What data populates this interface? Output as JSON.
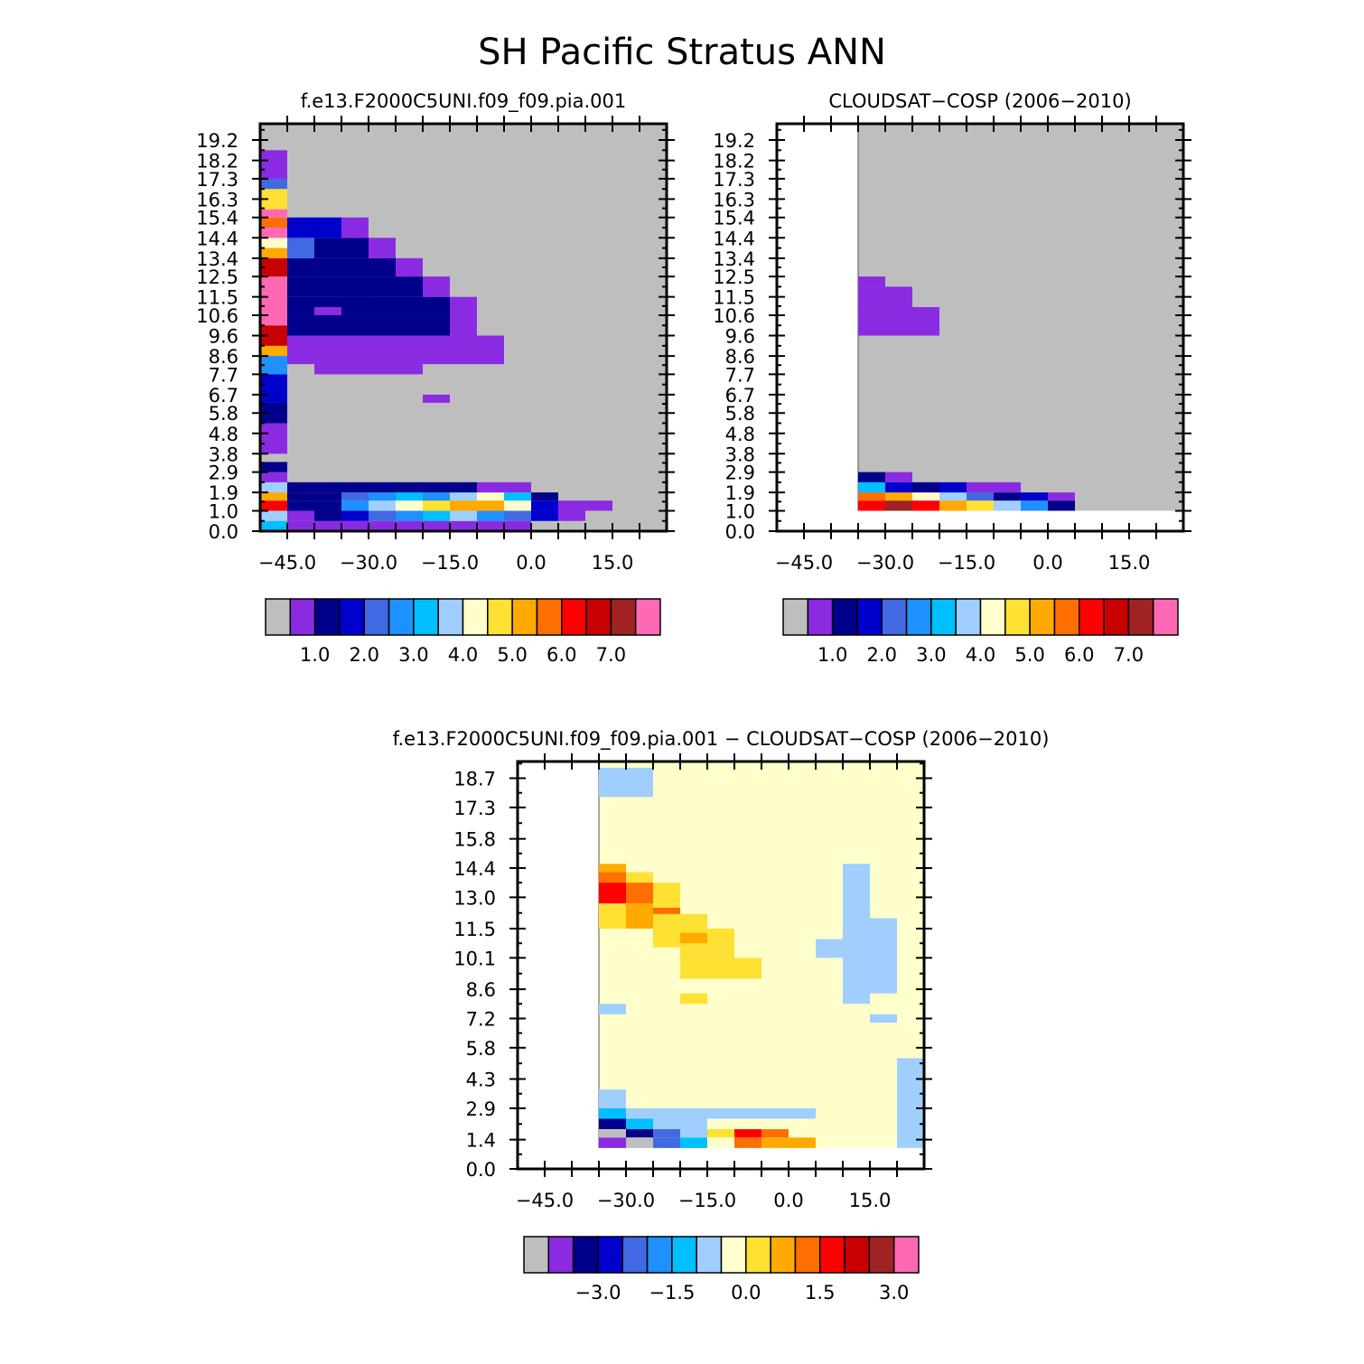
{
  "figure_title": "SH Pacific Stratus ANN",
  "colors": {
    "palette": [
      "#bebebe",
      "#8a2be2",
      "#00008b",
      "#0000cd",
      "#4169e1",
      "#1e90ff",
      "#00bfff",
      "#a0cfff",
      "#ffffcc",
      "#ffe133",
      "#ffaa00",
      "#ff6e00",
      "#ff0000",
      "#c80000",
      "#a02323",
      "#ff69b4"
    ],
    "missing": "#ffffff"
  },
  "chart_data": [
    {
      "type": "heatmap",
      "title": "f.e13.F2000C5UNI.f09_f09.pia.001",
      "xlabel": "",
      "ylabel": "",
      "xlim": [
        -50,
        25
      ],
      "ylim": [
        0.0,
        20.0
      ],
      "x_ticks": [
        -45,
        -30,
        -15,
        0,
        15
      ],
      "x_tick_labels": [
        "−45.0",
        "−30.0",
        "−15.0",
        "0.0",
        "15.0"
      ],
      "y_ticks": [
        0.0,
        1.0,
        1.9,
        2.9,
        3.8,
        4.8,
        5.8,
        6.7,
        7.7,
        8.6,
        9.6,
        10.6,
        11.5,
        12.5,
        13.4,
        14.4,
        15.4,
        16.3,
        17.3,
        18.2,
        19.2
      ],
      "y_tick_labels": [
        "0.0",
        "1.0",
        "1.9",
        "2.9",
        "3.8",
        "4.8",
        "5.8",
        "6.7",
        "7.7",
        "8.6",
        "9.6",
        "10.6",
        "11.5",
        "12.5",
        "13.4",
        "14.4",
        "15.4",
        "16.3",
        "17.3",
        "18.2",
        "19.2"
      ],
      "background_color_index": 0,
      "cells_format": "[x0, x1, y0, y1, color_index]",
      "cells": [
        [
          -50,
          -45,
          0.0,
          0.5,
          6
        ],
        [
          -50,
          -45,
          0.5,
          1.0,
          7
        ],
        [
          -50,
          -45,
          1.0,
          1.5,
          12
        ],
        [
          -50,
          -45,
          1.5,
          1.9,
          10
        ],
        [
          -50,
          -45,
          1.9,
          2.4,
          7
        ],
        [
          -50,
          -45,
          2.4,
          2.9,
          1
        ],
        [
          -50,
          -45,
          2.9,
          3.4,
          2
        ],
        [
          -50,
          -45,
          3.4,
          3.8,
          0
        ],
        [
          -50,
          -45,
          3.8,
          5.3,
          1
        ],
        [
          -50,
          -45,
          5.3,
          6.3,
          2
        ],
        [
          -50,
          -45,
          6.3,
          7.7,
          3
        ],
        [
          -50,
          -45,
          7.7,
          8.6,
          5
        ],
        [
          -50,
          -45,
          8.6,
          9.1,
          10
        ],
        [
          -50,
          -45,
          9.1,
          10.1,
          13
        ],
        [
          -50,
          -45,
          10.1,
          12.5,
          15
        ],
        [
          -50,
          -45,
          12.5,
          13.4,
          13
        ],
        [
          -50,
          -45,
          13.4,
          13.9,
          10
        ],
        [
          -50,
          -45,
          13.9,
          14.4,
          8
        ],
        [
          -50,
          -45,
          14.4,
          14.9,
          15
        ],
        [
          -50,
          -45,
          14.9,
          15.4,
          11
        ],
        [
          -50,
          -45,
          15.4,
          15.8,
          15
        ],
        [
          -50,
          -45,
          15.8,
          16.8,
          9
        ],
        [
          -50,
          -45,
          16.8,
          17.3,
          4
        ],
        [
          -50,
          -45,
          17.3,
          18.7,
          1
        ],
        [
          -45,
          0,
          0.0,
          0.5,
          1
        ],
        [
          -45,
          -40,
          0.5,
          1.0,
          1
        ],
        [
          -40,
          -35,
          0.5,
          1.0,
          2
        ],
        [
          -35,
          -30,
          0.5,
          1.0,
          3
        ],
        [
          -30,
          -25,
          0.5,
          1.0,
          4
        ],
        [
          -25,
          -20,
          0.5,
          1.0,
          5
        ],
        [
          -20,
          -15,
          0.5,
          1.0,
          6
        ],
        [
          -15,
          -10,
          0.5,
          1.0,
          7
        ],
        [
          -10,
          -5,
          0.5,
          1.0,
          5
        ],
        [
          -5,
          0,
          0.5,
          1.0,
          4
        ],
        [
          0,
          5,
          0.5,
          1.0,
          3
        ],
        [
          5,
          10,
          0.5,
          1.0,
          1
        ],
        [
          -45,
          -35,
          1.0,
          1.5,
          2
        ],
        [
          -35,
          -30,
          1.0,
          1.5,
          5
        ],
        [
          -30,
          -25,
          1.0,
          1.5,
          7
        ],
        [
          -25,
          -20,
          1.0,
          1.5,
          8
        ],
        [
          -20,
          -15,
          1.0,
          1.5,
          9
        ],
        [
          -15,
          -10,
          1.0,
          1.5,
          10
        ],
        [
          -10,
          -5,
          1.0,
          1.5,
          10
        ],
        [
          -5,
          0,
          1.0,
          1.5,
          8
        ],
        [
          0,
          5,
          1.0,
          1.5,
          3
        ],
        [
          5,
          10,
          1.0,
          1.5,
          1
        ],
        [
          10,
          15,
          1.0,
          1.5,
          1
        ],
        [
          -45,
          -35,
          1.5,
          1.9,
          2
        ],
        [
          -35,
          -30,
          1.5,
          1.9,
          4
        ],
        [
          -30,
          -25,
          1.5,
          1.9,
          5
        ],
        [
          -25,
          -20,
          1.5,
          1.9,
          6
        ],
        [
          -20,
          -15,
          1.5,
          1.9,
          5
        ],
        [
          -15,
          -10,
          1.5,
          1.9,
          7
        ],
        [
          -10,
          -5,
          1.5,
          1.9,
          8
        ],
        [
          -5,
          0,
          1.5,
          1.9,
          6
        ],
        [
          0,
          5,
          1.5,
          1.9,
          2
        ],
        [
          -45,
          -10,
          1.9,
          2.4,
          2
        ],
        [
          -10,
          0,
          1.9,
          2.4,
          1
        ],
        [
          -40,
          -20,
          7.7,
          8.2,
          1
        ],
        [
          -20,
          -15,
          6.3,
          6.7,
          1
        ],
        [
          -45,
          -5,
          8.2,
          9.6,
          1
        ],
        [
          -45,
          -15,
          9.6,
          10.6,
          2
        ],
        [
          -15,
          -10,
          9.6,
          10.6,
          1
        ],
        [
          -45,
          -15,
          10.6,
          11.5,
          2
        ],
        [
          -15,
          -10,
          10.6,
          11.5,
          1
        ],
        [
          -45,
          -20,
          11.5,
          12.5,
          2
        ],
        [
          -20,
          -15,
          11.5,
          12.5,
          1
        ],
        [
          -45,
          -25,
          12.5,
          13.4,
          2
        ],
        [
          -25,
          -20,
          12.5,
          13.4,
          1
        ],
        [
          -45,
          -40,
          13.4,
          14.4,
          4
        ],
        [
          -40,
          -30,
          13.4,
          14.4,
          2
        ],
        [
          -30,
          -25,
          13.4,
          14.4,
          1
        ],
        [
          -45,
          -35,
          14.4,
          15.4,
          3
        ],
        [
          -35,
          -30,
          14.4,
          15.4,
          1
        ],
        [
          -40,
          -35,
          10.6,
          11.0,
          1
        ],
        [
          -35,
          -30,
          11.5,
          12.0,
          2
        ]
      ]
    },
    {
      "type": "heatmap",
      "title": "CLOUDSAT−COSP (2006−2010)",
      "xlabel": "",
      "ylabel": "",
      "xlim": [
        -50,
        25
      ],
      "ylim": [
        0.0,
        20.0
      ],
      "x_ticks": [
        -45,
        -30,
        -15,
        0,
        15
      ],
      "x_tick_labels": [
        "−45.0",
        "−30.0",
        "−15.0",
        "0.0",
        "15.0"
      ],
      "y_ticks": [
        0.0,
        1.0,
        1.9,
        2.9,
        3.8,
        4.8,
        5.8,
        6.7,
        7.7,
        8.6,
        9.6,
        10.6,
        11.5,
        12.5,
        13.4,
        14.4,
        15.4,
        16.3,
        17.3,
        18.2,
        19.2
      ],
      "y_tick_labels": [
        "0.0",
        "1.0",
        "1.9",
        "2.9",
        "3.8",
        "4.8",
        "5.8",
        "6.7",
        "7.7",
        "8.6",
        "9.6",
        "10.6",
        "11.5",
        "12.5",
        "13.4",
        "14.4",
        "15.4",
        "16.3",
        "17.3",
        "18.2",
        "19.2"
      ],
      "data_region": {
        "x0": -35,
        "y_min": 1.0
      },
      "background_color_index": 0,
      "cells_format": "[x0, x1, y0, y1, color_index]",
      "cells": [
        [
          -35,
          -30,
          1.0,
          1.5,
          12
        ],
        [
          -30,
          -25,
          1.0,
          1.5,
          14
        ],
        [
          -25,
          -20,
          1.0,
          1.5,
          12
        ],
        [
          -20,
          -15,
          1.0,
          1.5,
          10
        ],
        [
          -15,
          -10,
          1.0,
          1.5,
          9
        ],
        [
          -10,
          -5,
          1.0,
          1.5,
          7
        ],
        [
          -5,
          0,
          1.0,
          1.5,
          5
        ],
        [
          0,
          5,
          1.0,
          1.5,
          2
        ],
        [
          -35,
          -30,
          1.5,
          1.9,
          11
        ],
        [
          -30,
          -25,
          1.5,
          1.9,
          10
        ],
        [
          -25,
          -20,
          1.5,
          1.9,
          8
        ],
        [
          -20,
          -15,
          1.5,
          1.9,
          7
        ],
        [
          -15,
          -10,
          1.5,
          1.9,
          4
        ],
        [
          -10,
          -5,
          1.5,
          1.9,
          2
        ],
        [
          -5,
          0,
          1.5,
          1.9,
          3
        ],
        [
          0,
          5,
          1.5,
          1.9,
          1
        ],
        [
          -35,
          -30,
          1.9,
          2.4,
          6
        ],
        [
          -30,
          -25,
          1.9,
          2.4,
          3
        ],
        [
          -25,
          -20,
          1.9,
          2.4,
          2
        ],
        [
          -20,
          -15,
          1.9,
          2.4,
          3
        ],
        [
          -15,
          -5,
          1.9,
          2.4,
          1
        ],
        [
          -35,
          -30,
          2.4,
          2.9,
          2
        ],
        [
          -30,
          -25,
          2.4,
          2.9,
          1
        ],
        [
          -35,
          -20,
          9.6,
          11.0,
          1
        ],
        [
          -35,
          -25,
          11.0,
          12.0,
          1
        ],
        [
          -35,
          -30,
          12.0,
          12.5,
          1
        ]
      ]
    },
    {
      "type": "heatmap",
      "title": "f.e13.F2000C5UNI.f09_f09.pia.001 − CLOUDSAT−COSP (2006−2010)",
      "xlabel": "",
      "ylabel": "",
      "xlim": [
        -50,
        25
      ],
      "ylim": [
        0.0,
        19.5
      ],
      "x_ticks": [
        -45,
        -30,
        -15,
        0,
        15
      ],
      "x_tick_labels": [
        "−45.0",
        "−30.0",
        "−15.0",
        "0.0",
        "15.0"
      ],
      "y_ticks": [
        0.0,
        1.4,
        2.9,
        4.3,
        5.8,
        7.2,
        8.6,
        10.1,
        11.5,
        13.0,
        14.4,
        15.8,
        17.3,
        18.7
      ],
      "y_tick_labels": [
        "0.0",
        "1.4",
        "2.9",
        "4.3",
        "5.8",
        "7.2",
        "8.6",
        "10.1",
        "11.5",
        "13.0",
        "14.4",
        "15.8",
        "17.3",
        "18.7"
      ],
      "data_region": {
        "x0": -35,
        "y_min": 1.0
      },
      "background_color_index": 8,
      "cells_format": "[x0, x1, y0, y1, color_index]",
      "cells": [
        [
          -35,
          -25,
          17.8,
          19.2,
          7
        ],
        [
          -35,
          -30,
          14.2,
          14.6,
          10
        ],
        [
          -35,
          -30,
          13.7,
          14.2,
          11
        ],
        [
          -30,
          -25,
          13.7,
          14.2,
          9
        ],
        [
          -35,
          -30,
          12.7,
          13.7,
          12
        ],
        [
          -30,
          -25,
          12.7,
          13.7,
          11
        ],
        [
          -25,
          -20,
          12.7,
          13.7,
          9
        ],
        [
          -35,
          -30,
          11.5,
          12.7,
          9
        ],
        [
          -30,
          -25,
          11.5,
          12.7,
          10
        ],
        [
          -25,
          -20,
          11.5,
          12.7,
          9
        ],
        [
          -25,
          -20,
          12.2,
          12.5,
          11
        ],
        [
          -20,
          -15,
          11.5,
          12.2,
          9
        ],
        [
          -25,
          -15,
          10.6,
          11.5,
          9
        ],
        [
          -15,
          -10,
          10.6,
          11.5,
          9
        ],
        [
          -20,
          -15,
          10.8,
          11.3,
          10
        ],
        [
          -15,
          -10,
          9.6,
          10.6,
          9
        ],
        [
          -20,
          -15,
          9.6,
          10.6,
          9
        ],
        [
          -15,
          -5,
          9.6,
          10.1,
          9
        ],
        [
          -20,
          -5,
          9.1,
          9.6,
          9
        ],
        [
          -20,
          -15,
          7.9,
          8.4,
          9
        ],
        [
          -35,
          -30,
          7.4,
          7.9,
          7
        ],
        [
          10,
          15,
          7.9,
          14.6,
          7
        ],
        [
          15,
          20,
          8.4,
          12.0,
          7
        ],
        [
          5,
          10,
          10.1,
          11.0,
          7
        ],
        [
          15,
          20,
          7.0,
          7.4,
          7
        ],
        [
          20,
          25,
          1.0,
          5.3,
          7
        ],
        [
          -35,
          -30,
          2.9,
          3.8,
          7
        ],
        [
          -35,
          -30,
          2.4,
          2.9,
          6
        ],
        [
          -30,
          5,
          2.4,
          2.9,
          7
        ],
        [
          -35,
          -30,
          1.9,
          2.4,
          2
        ],
        [
          -30,
          -25,
          1.9,
          2.4,
          6
        ],
        [
          -25,
          -15,
          1.9,
          2.4,
          7
        ],
        [
          -35,
          -30,
          1.5,
          1.9,
          0
        ],
        [
          -30,
          -25,
          1.5,
          1.9,
          2
        ],
        [
          -25,
          -20,
          1.5,
          1.9,
          4
        ],
        [
          -20,
          -15,
          1.5,
          1.9,
          7
        ],
        [
          -15,
          -10,
          1.5,
          1.9,
          9
        ],
        [
          -10,
          -5,
          1.5,
          1.9,
          12
        ],
        [
          -5,
          0,
          1.5,
          1.9,
          11
        ],
        [
          -35,
          -30,
          1.0,
          1.5,
          1
        ],
        [
          -30,
          -25,
          1.0,
          1.5,
          0
        ],
        [
          -25,
          -20,
          1.0,
          1.5,
          4
        ],
        [
          -20,
          -15,
          1.0,
          1.5,
          6
        ],
        [
          -15,
          -10,
          1.0,
          1.5,
          8
        ],
        [
          -10,
          -5,
          1.0,
          1.5,
          11
        ],
        [
          -5,
          0,
          1.0,
          1.5,
          10
        ],
        [
          0,
          5,
          1.0,
          1.5,
          10
        ]
      ]
    }
  ],
  "colorbars": [
    {
      "labels": [
        "1.0",
        "2.0",
        "3.0",
        "4.0",
        "5.0",
        "6.0",
        "7.0"
      ],
      "label_after_box": [
        1,
        3,
        5,
        7,
        9,
        11,
        13
      ]
    },
    {
      "labels": [
        "1.0",
        "2.0",
        "3.0",
        "4.0",
        "5.0",
        "6.0",
        "7.0"
      ],
      "label_after_box": [
        1,
        3,
        5,
        7,
        9,
        11,
        13
      ]
    },
    {
      "labels": [
        "−3.0",
        "−1.5",
        "0.0",
        "1.5",
        "3.0"
      ],
      "label_after_box": [
        2,
        5,
        8,
        11,
        14
      ]
    }
  ]
}
